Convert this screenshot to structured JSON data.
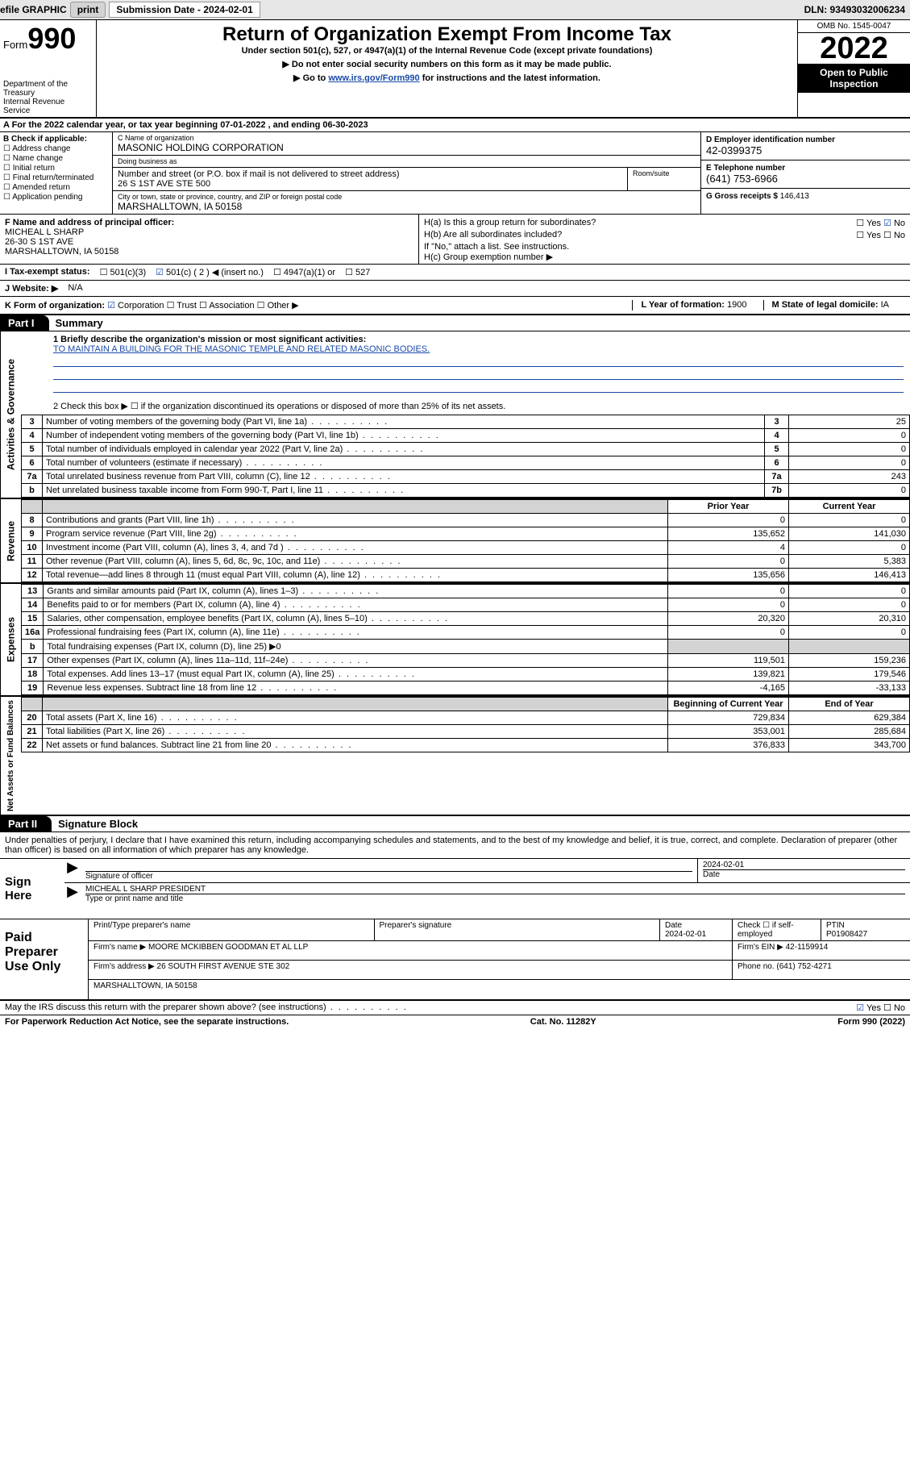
{
  "topbar": {
    "efile": "efile GRAPHIC",
    "print": "print",
    "subdate_label": "Submission Date - 2024-02-01",
    "dln": "DLN: 93493032006234"
  },
  "header": {
    "form_label": "Form",
    "form_num": "990",
    "title": "Return of Organization Exempt From Income Tax",
    "sub": "Under section 501(c), 527, or 4947(a)(1) of the Internal Revenue Code (except private foundations)",
    "inst1": "▶ Do not enter social security numbers on this form as it may be made public.",
    "inst2_pre": "▶ Go to ",
    "inst2_link": "www.irs.gov/Form990",
    "inst2_post": " for instructions and the latest information.",
    "dept": "Department of the Treasury",
    "irs": "Internal Revenue Service",
    "omb": "OMB No. 1545-0047",
    "year": "2022",
    "open": "Open to Public Inspection"
  },
  "row_a": "A For the 2022 calendar year, or tax year beginning 07-01-2022    , and ending 06-30-2023",
  "b": {
    "label": "B Check if applicable:",
    "items": [
      "Address change",
      "Name change",
      "Initial return",
      "Final return/terminated",
      "Amended return",
      "Application pending"
    ]
  },
  "c": {
    "name_lbl": "C Name of organization",
    "name": "MASONIC HOLDING CORPORATION",
    "dba_lbl": "Doing business as",
    "dba": "",
    "street_lbl": "Number and street (or P.O. box if mail is not delivered to street address)",
    "suite_lbl": "Room/suite",
    "street": "26 S 1ST AVE STE 500",
    "city_lbl": "City or town, state or province, country, and ZIP or foreign postal code",
    "city": "MARSHALLTOWN, IA  50158"
  },
  "d": {
    "ein_lbl": "D Employer identification number",
    "ein": "42-0399375",
    "tel_lbl": "E Telephone number",
    "tel": "(641) 753-6966",
    "gross_lbl": "G Gross receipts $",
    "gross": "146,413"
  },
  "f": {
    "lbl": "F Name and address of principal officer:",
    "name": "MICHEAL L SHARP",
    "street": "26-30 S 1ST AVE",
    "city": "MARSHALLTOWN, IA  50158"
  },
  "h": {
    "a_lbl": "H(a)  Is this a group return for subordinates?",
    "a_yes": "Yes",
    "a_no": "No",
    "b_lbl": "H(b)  Are all subordinates included?",
    "b_yes": "Yes",
    "b_no": "No",
    "b_note": "If \"No,\" attach a list. See instructions.",
    "c_lbl": "H(c)  Group exemption number ▶"
  },
  "i": {
    "lbl": "I   Tax-exempt status:",
    "c3": "501(c)(3)",
    "c2": "501(c) ( 2 ) ◀ (insert no.)",
    "a1": "4947(a)(1) or",
    "527": "527"
  },
  "j": {
    "lbl": "J   Website: ▶",
    "val": "N/A"
  },
  "k": {
    "lbl": "K Form of organization:",
    "corp": "Corporation",
    "trust": "Trust",
    "assoc": "Association",
    "other": "Other ▶"
  },
  "l": {
    "lbl": "L Year of formation:",
    "val": "1900"
  },
  "m": {
    "lbl": "M State of legal domicile:",
    "val": "IA"
  },
  "part1": {
    "tab": "Part I",
    "title": "Summary"
  },
  "mission": {
    "lbl": "1   Briefly describe the organization's mission or most significant activities:",
    "txt": "TO MAINTAIN A BUILDING FOR THE MASONIC TEMPLE AND RELATED MASONIC BODIES."
  },
  "line2": "2   Check this box ▶ ☐  if the organization discontinued its operations or disposed of more than 25% of its net assets.",
  "sections": {
    "gov": {
      "label": "Activities & Governance",
      "rows": [
        {
          "n": "3",
          "d": "Number of voting members of the governing body (Part VI, line 1a)",
          "box": "3",
          "v": "25"
        },
        {
          "n": "4",
          "d": "Number of independent voting members of the governing body (Part VI, line 1b)",
          "box": "4",
          "v": "0"
        },
        {
          "n": "5",
          "d": "Total number of individuals employed in calendar year 2022 (Part V, line 2a)",
          "box": "5",
          "v": "0"
        },
        {
          "n": "6",
          "d": "Total number of volunteers (estimate if necessary)",
          "box": "6",
          "v": "0"
        },
        {
          "n": "7a",
          "d": "Total unrelated business revenue from Part VIII, column (C), line 12",
          "box": "7a",
          "v": "243"
        },
        {
          "n": "b",
          "d": "Net unrelated business taxable income from Form 990-T, Part I, line 11",
          "box": "7b",
          "v": "0"
        }
      ]
    },
    "rev": {
      "label": "Revenue",
      "hdr_prior": "Prior Year",
      "hdr_curr": "Current Year",
      "rows": [
        {
          "n": "8",
          "d": "Contributions and grants (Part VIII, line 1h)",
          "p": "0",
          "c": "0"
        },
        {
          "n": "9",
          "d": "Program service revenue (Part VIII, line 2g)",
          "p": "135,652",
          "c": "141,030"
        },
        {
          "n": "10",
          "d": "Investment income (Part VIII, column (A), lines 3, 4, and 7d )",
          "p": "4",
          "c": "0"
        },
        {
          "n": "11",
          "d": "Other revenue (Part VIII, column (A), lines 5, 6d, 8c, 9c, 10c, and 11e)",
          "p": "0",
          "c": "5,383"
        },
        {
          "n": "12",
          "d": "Total revenue—add lines 8 through 11 (must equal Part VIII, column (A), line 12)",
          "p": "135,656",
          "c": "146,413"
        }
      ]
    },
    "exp": {
      "label": "Expenses",
      "rows": [
        {
          "n": "13",
          "d": "Grants and similar amounts paid (Part IX, column (A), lines 1–3)",
          "p": "0",
          "c": "0"
        },
        {
          "n": "14",
          "d": "Benefits paid to or for members (Part IX, column (A), line 4)",
          "p": "0",
          "c": "0"
        },
        {
          "n": "15",
          "d": "Salaries, other compensation, employee benefits (Part IX, column (A), lines 5–10)",
          "p": "20,320",
          "c": "20,310"
        },
        {
          "n": "16a",
          "d": "Professional fundraising fees (Part IX, column (A), line 11e)",
          "p": "0",
          "c": "0"
        },
        {
          "n": "b",
          "d": "Total fundraising expenses (Part IX, column (D), line 25) ▶0",
          "grey": true
        },
        {
          "n": "17",
          "d": "Other expenses (Part IX, column (A), lines 11a–11d, 11f–24e)",
          "p": "119,501",
          "c": "159,236"
        },
        {
          "n": "18",
          "d": "Total expenses. Add lines 13–17 (must equal Part IX, column (A), line 25)",
          "p": "139,821",
          "c": "179,546"
        },
        {
          "n": "19",
          "d": "Revenue less expenses. Subtract line 18 from line 12",
          "p": "-4,165",
          "c": "-33,133"
        }
      ]
    },
    "net": {
      "label": "Net Assets or Fund Balances",
      "hdr_prior": "Beginning of Current Year",
      "hdr_curr": "End of Year",
      "rows": [
        {
          "n": "20",
          "d": "Total assets (Part X, line 16)",
          "p": "729,834",
          "c": "629,384"
        },
        {
          "n": "21",
          "d": "Total liabilities (Part X, line 26)",
          "p": "353,001",
          "c": "285,684"
        },
        {
          "n": "22",
          "d": "Net assets or fund balances. Subtract line 21 from line 20",
          "p": "376,833",
          "c": "343,700"
        }
      ]
    }
  },
  "part2": {
    "tab": "Part II",
    "title": "Signature Block"
  },
  "sig": {
    "intro": "Under penalties of perjury, I declare that I have examined this return, including accompanying schedules and statements, and to the best of my knowledge and belief, it is true, correct, and complete. Declaration of preparer (other than officer) is based on all information of which preparer has any knowledge.",
    "here": "Sign Here",
    "sig_lbl": "Signature of officer",
    "date_lbl": "Date",
    "date": "2024-02-01",
    "name": "MICHEAL L SHARP  PRESIDENT",
    "name_lbl": "Type or print name and title"
  },
  "prep": {
    "title": "Paid Preparer Use Only",
    "pt_lbl": "Print/Type preparer's name",
    "ps_lbl": "Preparer's signature",
    "date_lbl": "Date",
    "date": "2024-02-01",
    "check_lbl": "Check ☐ if self-employed",
    "ptin_lbl": "PTIN",
    "ptin": "P01908427",
    "firm_lbl": "Firm's name    ▶",
    "firm": "MOORE MCKIBBEN GOODMAN ET AL LLP",
    "ein_lbl": "Firm's EIN ▶",
    "ein": "42-1159914",
    "addr_lbl": "Firm's address ▶",
    "addr1": "26 SOUTH FIRST AVENUE STE 302",
    "addr2": "MARSHALLTOWN, IA  50158",
    "phone_lbl": "Phone no.",
    "phone": "(641) 752-4271"
  },
  "foot": {
    "q": "May the IRS discuss this return with the preparer shown above? (see instructions)",
    "yes": "Yes",
    "no": "No",
    "pra": "For Paperwork Reduction Act Notice, see the separate instructions.",
    "cat": "Cat. No. 11282Y",
    "form": "Form 990 (2022)"
  }
}
